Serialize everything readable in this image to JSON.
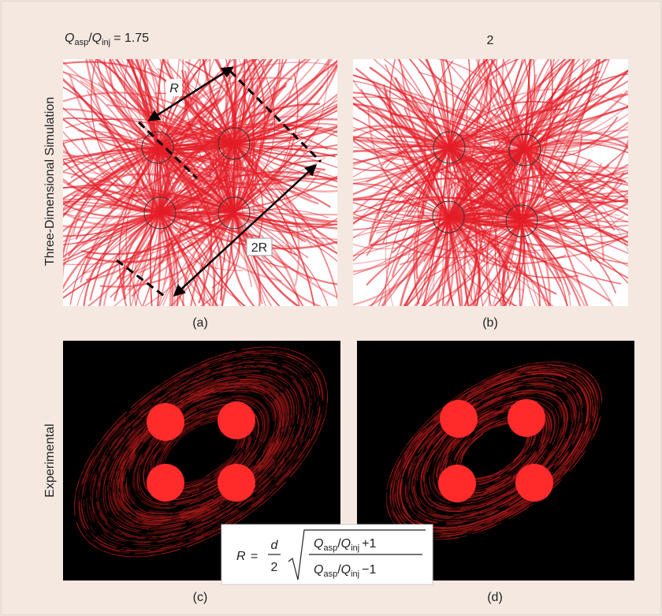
{
  "header": {
    "ratio": {
      "q1": "Q",
      "sub1": "asp",
      "slash": "/",
      "q2": "Q",
      "sub2": "inj",
      "value": "= 1.75"
    },
    "ratio_b": "2"
  },
  "row_labels": [
    "Three-Dimensional Simulation",
    "Experimental"
  ],
  "annotations": {
    "r": "R",
    "two_r": "2R"
  },
  "panels": [
    "(a)",
    "(b)",
    "(c)",
    "(d)"
  ],
  "formula": {
    "lhs": "R",
    "eq": "=",
    "d": "d",
    "two": "2",
    "num": {
      "q1": "Q",
      "sub1": "asp",
      "slash": "/",
      "q2": "Q",
      "sub2": "inj",
      "tail": "+1"
    },
    "den": {
      "q1": "Q",
      "sub1": "asp",
      "slash": "/",
      "q2": "Q",
      "sub2": "inj",
      "tail": "−1"
    }
  }
}
